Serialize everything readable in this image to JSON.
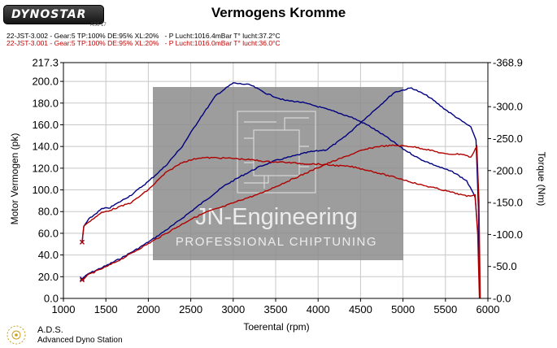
{
  "header": {
    "logo_text": "DYNOSTAR",
    "logo_sub": "AS6 17",
    "title": "Vermogens Kromme",
    "run_blue": "22-JST-3.002 - Gear:5 TP:100% DE:95% XL:20%   - P Lucht:1016.4mBar T° lucht:37.2°C",
    "run_red": "22-JST-3.001 - Gear:5 TP:100% DE:95% XL:20%   - P Lucht:1016.0mBar T° lucht:36.0°C"
  },
  "watermark": {
    "text": "JN-Engineering",
    "subtext": "PROFESSIONAL CHIPTUNING"
  },
  "footer": {
    "ads": "A.D.S.",
    "ads_full": "Advanced Dyno Station"
  },
  "colors": {
    "blue": "#000080",
    "red": "#b00000",
    "grid": "#c8c8c8",
    "watermark_box": "#8c8c8c"
  },
  "chart_data": {
    "type": "line",
    "title": "Vermogens Kromme",
    "xlabel": "Toerental (rpm)",
    "ylabel": "Motor Vermogen (pk)",
    "y2label": "Torque (Nm)",
    "xlim": [
      1000,
      6000
    ],
    "ylim": [
      0,
      217.3
    ],
    "y2lim": [
      0,
      368.9
    ],
    "x_ticks": [
      "1000",
      "1500",
      "2000",
      "2500",
      "3000",
      "3500",
      "4000",
      "4500",
      "5000",
      "5500",
      "6000"
    ],
    "y_ticks": [
      "0.0",
      "20.0",
      "40.0",
      "60.0",
      "80.0",
      "100.0",
      "120.0",
      "140.0",
      "160.0",
      "180.0",
      "200.0",
      "217.3"
    ],
    "y2_ticks": [
      "-0.0",
      "-50.0",
      "-100.0",
      "-150.0",
      "-200.0",
      "-250.0",
      "-300.0",
      "-368.9"
    ],
    "grid": true,
    "series": [
      {
        "name": "22-JST-3.002",
        "axis": "left",
        "color": "#000080",
        "x": [
          1220,
          1300,
          1500,
          1700,
          1900,
          2100,
          2300,
          2500,
          2700,
          2900,
          3100,
          3300,
          3500,
          3700,
          3900,
          4100,
          4300,
          4500,
          4700,
          4900,
          5100,
          5300,
          5500,
          5700,
          5800,
          5860,
          5890,
          5905
        ],
        "values": [
          18,
          23,
          30,
          38,
          47,
          57,
          68,
          80,
          92,
          104,
          113,
          121,
          127,
          131,
          135,
          137,
          148,
          162,
          176,
          190,
          194,
          186,
          174,
          163,
          158,
          146,
          80,
          0
        ]
      },
      {
        "name": "22-JST-3.002",
        "axis": "right",
        "color": "#000080",
        "x": [
          1220,
          1240,
          1300,
          1450,
          1550,
          1800,
          2000,
          2200,
          2400,
          2600,
          2800,
          3000,
          3200,
          3400,
          3600,
          3800,
          4000,
          4200,
          4400,
          4600,
          4800,
          5000,
          5200,
          5400,
          5600,
          5750,
          5850,
          5890,
          5905
        ],
        "values": [
          88,
          113,
          124,
          140,
          142,
          162,
          183,
          207,
          238,
          280,
          318,
          337,
          334,
          320,
          310,
          307,
          300,
          292,
          283,
          270,
          253,
          234,
          218,
          207,
          197,
          184,
          158,
          90,
          0
        ]
      },
      {
        "name": "22-JST-3.001",
        "axis": "left",
        "color": "#b00000",
        "x": [
          1220,
          1300,
          1500,
          1700,
          1900,
          2100,
          2300,
          2500,
          2700,
          2900,
          3100,
          3300,
          3500,
          3700,
          3900,
          4100,
          4300,
          4500,
          4700,
          4900,
          5100,
          5300,
          5500,
          5700,
          5800,
          5870,
          5895,
          5910
        ],
        "values": [
          17,
          22,
          29,
          37,
          46,
          55,
          64,
          73,
          80,
          85,
          91,
          96,
          103,
          110,
          117,
          124,
          130,
          136,
          140,
          141,
          140,
          137,
          133,
          133,
          130,
          140,
          90,
          0
        ]
      },
      {
        "name": "22-JST-3.001",
        "axis": "right",
        "color": "#b00000",
        "x": [
          1220,
          1240,
          1300,
          1450,
          1550,
          1800,
          2000,
          2200,
          2400,
          2600,
          2800,
          3000,
          3200,
          3400,
          3600,
          3800,
          4000,
          4200,
          4400,
          4600,
          4800,
          5000,
          5200,
          5400,
          5600,
          5750,
          5850,
          5880,
          5900
        ],
        "values": [
          88,
          113,
          120,
          134,
          138,
          150,
          170,
          196,
          213,
          220,
          220,
          219,
          217,
          214,
          213,
          211,
          210,
          208,
          206,
          200,
          193,
          186,
          178,
          172,
          165,
          160,
          162,
          100,
          0
        ]
      }
    ]
  }
}
